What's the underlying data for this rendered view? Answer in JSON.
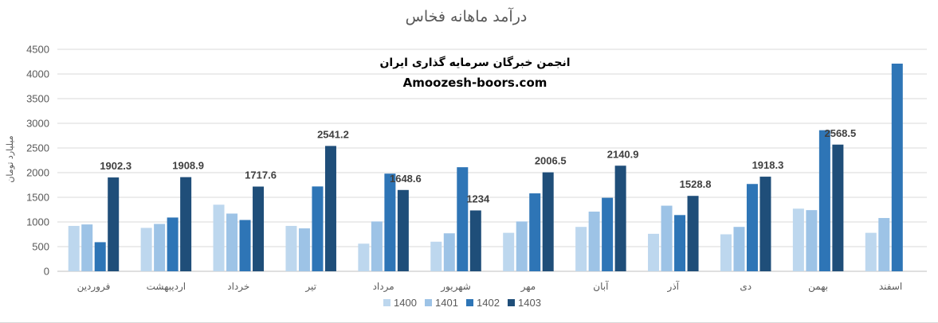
{
  "watermark": {
    "line1": "انجمن خبرگان سرمایه گذاری ایران",
    "line2": "Amoozesh-boors.com"
  },
  "chart_data": {
    "type": "bar",
    "title": "درآمد ماهانه فخاس",
    "xlabel": "",
    "ylabel": "میلیارد تومان",
    "ylim": [
      0,
      4500
    ],
    "yticks": [
      0,
      500,
      1000,
      1500,
      2000,
      2500,
      3000,
      3500,
      4000,
      4500
    ],
    "grid": true,
    "legend_position": "bottom",
    "categories": [
      "فروردین",
      "اردیبهشت",
      "خرداد",
      "تیر",
      "مرداد",
      "شهریور",
      "مهر",
      "آبان",
      "آذر",
      "دی",
      "بهمن",
      "اسفند"
    ],
    "series": [
      {
        "name": "1400",
        "color": "#bdd7ee",
        "values": [
          920,
          880,
          1350,
          920,
          560,
          600,
          780,
          900,
          760,
          750,
          1270,
          780
        ]
      },
      {
        "name": "1401",
        "color": "#9dc3e6",
        "values": [
          950,
          960,
          1170,
          870,
          1010,
          770,
          1010,
          1210,
          1330,
          900,
          1240,
          1080
        ]
      },
      {
        "name": "1402",
        "color": "#2e75b6",
        "values": [
          590,
          1090,
          1040,
          1720,
          1980,
          2110,
          1580,
          1490,
          1140,
          1770,
          2860,
          4210
        ]
      },
      {
        "name": "1403",
        "color": "#1f4e79",
        "values": [
          1902.3,
          1908.9,
          1717.6,
          2541.2,
          1648.6,
          1234,
          2006.5,
          2140.9,
          1528.8,
          1918.3,
          2568.5,
          null
        ]
      }
    ],
    "data_labels": {
      "series": "1403",
      "labels": [
        "1902.3",
        "1908.9",
        "1717.6",
        "2541.2",
        "1648.6",
        "1234",
        "2006.5",
        "2140.9",
        "1528.8",
        "1918.3",
        "2568.5",
        null
      ]
    }
  }
}
